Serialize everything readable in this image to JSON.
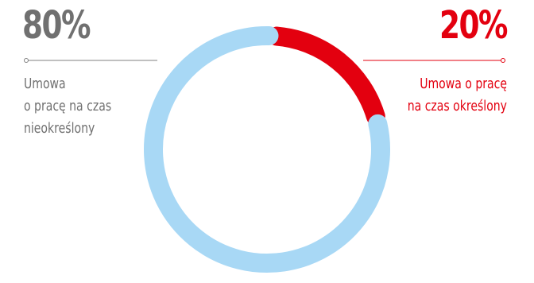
{
  "chart_data": {
    "type": "pie",
    "style": "donut",
    "categories": [
      "Umowa o pracę na czas nieokreślony",
      "Umowa o pracę na czas określony"
    ],
    "values": [
      80,
      20
    ],
    "series": [
      {
        "name": "",
        "values": [
          80,
          20
        ]
      }
    ],
    "labels": {
      "left": {
        "percent": "80%",
        "lines": [
          "Umowa",
          "o pracę na czas",
          "nieokreślony"
        ]
      },
      "right": {
        "percent": "20%",
        "lines": [
          "Umowa o pracę",
          "na czas określony"
        ]
      }
    },
    "colors": {
      "Umowa o pracę na czas nieokreślony": "#a8d8f5",
      "Umowa o pracę na czas określony": "#e3000f",
      "left_text": "#707070",
      "right_text": "#e3000f"
    },
    "legend": "none",
    "grid": false
  }
}
